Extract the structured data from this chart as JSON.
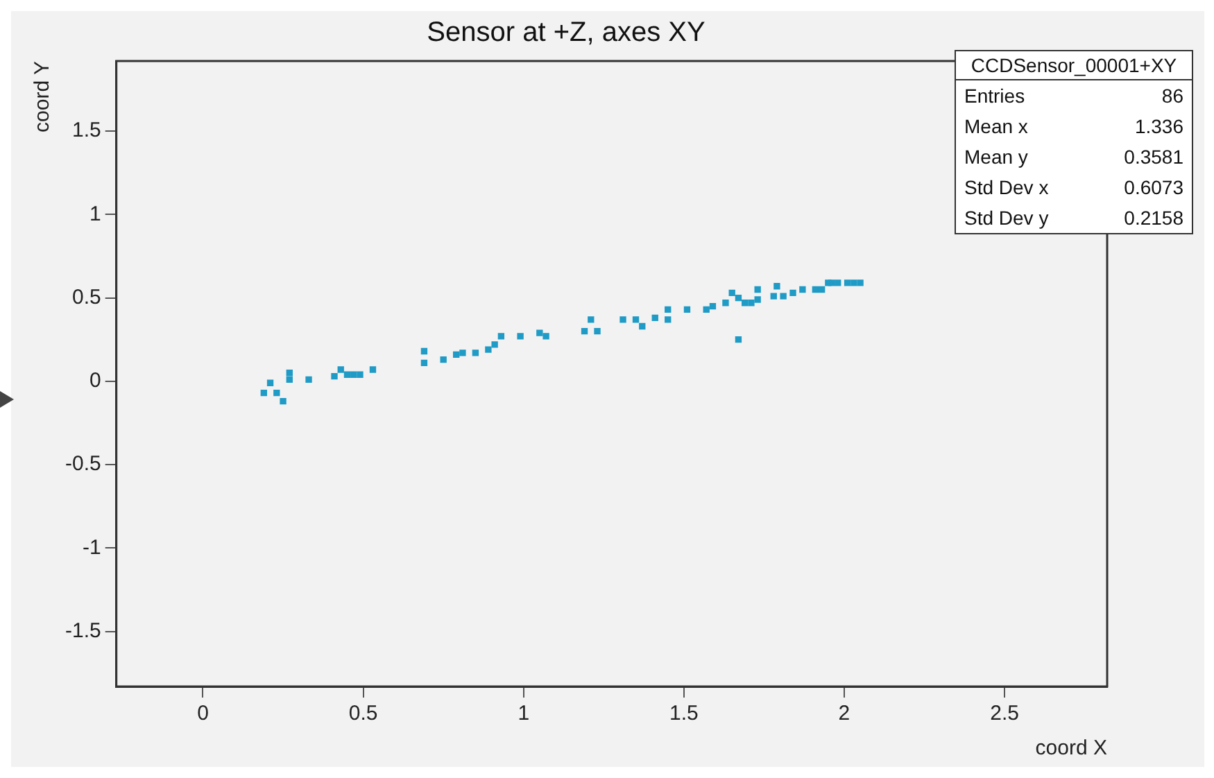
{
  "chart_data": {
    "type": "scatter",
    "title": "Sensor at +Z, axes XY",
    "xlabel": "coord X",
    "ylabel": "coord Y",
    "annotations": [
      "CCDSensor_00001+XY",
      "Entries 86",
      "Mean x 1.336",
      "Mean y 0.3581",
      "Std Dev x 0.6073",
      "Std Dev y 0.2158"
    ],
    "xlim": [
      -0.27,
      2.82
    ],
    "ylim": [
      -1.83,
      1.92
    ],
    "xticks": [
      0,
      0.5,
      1,
      1.5,
      2,
      2.5
    ],
    "yticks": [
      -1.5,
      -1,
      -0.5,
      0,
      0.5,
      1,
      1.5
    ],
    "grid": false,
    "legend": false,
    "marker": "square",
    "series": [
      {
        "color": "#1f9bc6",
        "x": [
          0.21,
          0.19,
          0.23,
          0.25,
          0.27,
          0.27,
          0.33,
          0.41,
          0.43,
          0.45,
          0.47,
          0.49,
          0.53,
          0.69,
          0.69,
          0.75,
          0.79,
          0.81,
          0.85,
          0.89,
          0.91,
          0.93,
          0.99,
          1.05,
          1.07,
          1.19,
          1.23,
          1.21,
          1.31,
          1.35,
          1.37,
          1.41,
          1.45,
          1.45,
          1.51,
          1.57,
          1.59,
          1.63,
          1.65,
          1.67,
          1.69,
          1.71,
          1.67,
          1.73,
          1.73,
          1.78,
          1.81,
          1.84,
          1.79,
          1.87,
          1.91,
          1.93,
          1.95,
          1.96,
          1.98,
          2.01,
          2.03,
          2.05
        ],
        "values": [
          -0.01,
          -0.07,
          -0.07,
          -0.12,
          0.05,
          0.01,
          0.01,
          0.03,
          0.07,
          0.04,
          0.04,
          0.04,
          0.07,
          0.18,
          0.11,
          0.13,
          0.16,
          0.17,
          0.17,
          0.19,
          0.22,
          0.27,
          0.27,
          0.29,
          0.27,
          0.3,
          0.3,
          0.37,
          0.37,
          0.37,
          0.33,
          0.38,
          0.37,
          0.43,
          0.43,
          0.43,
          0.45,
          0.47,
          0.53,
          0.5,
          0.47,
          0.47,
          0.25,
          0.49,
          0.55,
          0.51,
          0.51,
          0.53,
          0.57,
          0.55,
          0.55,
          0.55,
          0.59,
          0.59,
          0.59,
          0.59,
          0.59,
          0.59
        ]
      }
    ]
  }
}
